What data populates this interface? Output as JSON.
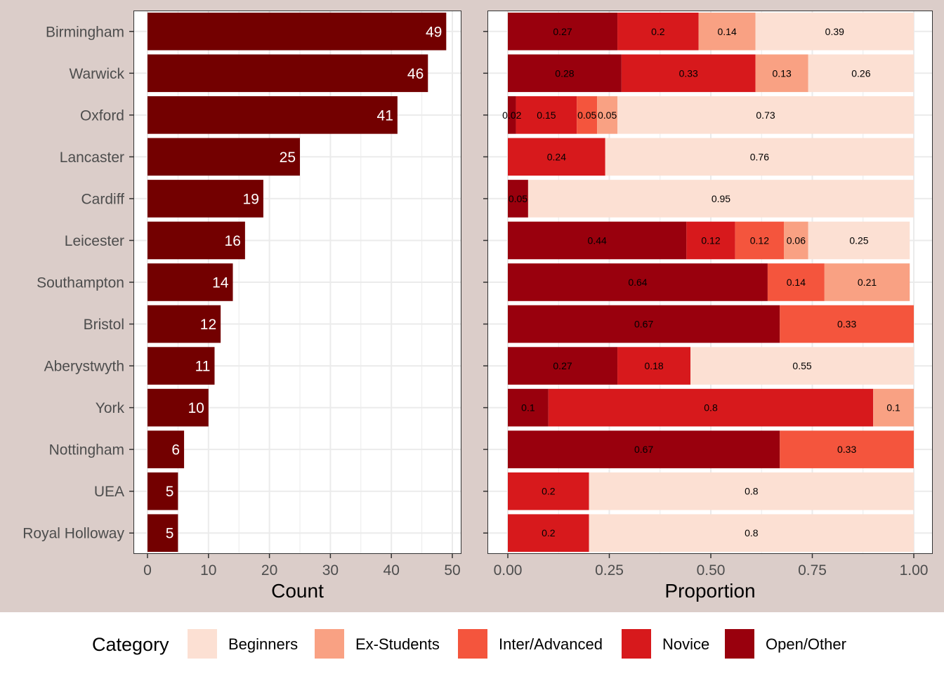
{
  "chart_data": [
    {
      "type": "bar",
      "orientation": "horizontal",
      "xlabel": "Count",
      "xlim": [
        0,
        50
      ],
      "xticks": [
        "0",
        "10",
        "20",
        "30",
        "40",
        "50"
      ],
      "grid": true,
      "categories": [
        "Birmingham",
        "Warwick",
        "Oxford",
        "Lancaster",
        "Cardiff",
        "Leicester",
        "Southampton",
        "Bristol",
        "Aberystwyth",
        "York",
        "Nottingham",
        "UEA",
        "Royal Holloway"
      ],
      "values": [
        49,
        46,
        41,
        25,
        19,
        16,
        14,
        12,
        11,
        10,
        6,
        5,
        5
      ],
      "value_labels": [
        "49",
        "46",
        "41",
        "25",
        "19",
        "16",
        "14",
        "12",
        "11",
        "10",
        "6",
        "5",
        "5"
      ],
      "bar_color": "#730000"
    },
    {
      "type": "bar",
      "orientation": "horizontal",
      "stacked": true,
      "xlabel": "Proportion",
      "xlim": [
        0,
        1
      ],
      "xticks": [
        "0.00",
        "0.25",
        "0.50",
        "0.75",
        "1.00"
      ],
      "grid": true,
      "categories": [
        "Birmingham",
        "Warwick",
        "Oxford",
        "Lancaster",
        "Cardiff",
        "Leicester",
        "Southampton",
        "Bristol",
        "Aberystwyth",
        "York",
        "Nottingham",
        "UEA",
        "Royal Holloway"
      ],
      "series": [
        {
          "name": "Open/Other",
          "color": "#99000d",
          "values": [
            0.27,
            0.28,
            0.02,
            0,
            0.05,
            0.44,
            0.64,
            0.67,
            0.27,
            0.1,
            0.67,
            0,
            0
          ],
          "labels": [
            "0.27",
            "0.28",
            "0.02",
            "",
            "0.05",
            "0.44",
            "0.64",
            "0.67",
            "0.27",
            "0.1",
            "0.67",
            "",
            ""
          ]
        },
        {
          "name": "Novice",
          "color": "#d7191c",
          "values": [
            0.2,
            0.33,
            0.15,
            0.24,
            0,
            0.12,
            0,
            0,
            0.18,
            0.8,
            0,
            0.2,
            0.2
          ],
          "labels": [
            "0.2",
            "0.33",
            "0.15",
            "0.24",
            "",
            "0.12",
            "",
            "",
            "0.18",
            "0.8",
            "",
            "0.2",
            "0.2"
          ]
        },
        {
          "name": "Inter/Advanced",
          "color": "#f4553d",
          "values": [
            0,
            0,
            0.05,
            0,
            0,
            0.12,
            0.14,
            0.33,
            0,
            0,
            0.33,
            0,
            0
          ],
          "labels": [
            "",
            "",
            "0.05",
            "",
            "",
            "0.12",
            "0.14",
            "0.33",
            "",
            "",
            "0.33",
            "",
            ""
          ]
        },
        {
          "name": "Ex-Students",
          "color": "#f9a183",
          "values": [
            0.14,
            0.13,
            0.05,
            0,
            0,
            0.06,
            0.21,
            0,
            0,
            0.1,
            0,
            0,
            0
          ],
          "labels": [
            "0.14",
            "0.13",
            "0.05",
            "",
            "",
            "0.06",
            "0.21",
            "",
            "",
            "0.1",
            "",
            "",
            ""
          ]
        },
        {
          "name": "Beginners",
          "color": "#fce0d3",
          "values": [
            0.39,
            0.26,
            0.73,
            0.76,
            0.95,
            0.25,
            0,
            0,
            0.55,
            0,
            0,
            0.8,
            0.8
          ],
          "labels": [
            "0.39",
            "0.26",
            "0.73",
            "0.76",
            "0.95",
            "0.25",
            "",
            "",
            "0.55",
            "",
            "",
            "0.8",
            "0.8"
          ]
        }
      ]
    }
  ],
  "legend": {
    "title": "Category",
    "items": [
      {
        "label": "Beginners",
        "color": "#fce0d3"
      },
      {
        "label": "Ex-Students",
        "color": "#f9a183"
      },
      {
        "label": "Inter/Advanced",
        "color": "#f4553d"
      },
      {
        "label": "Novice",
        "color": "#d7191c"
      },
      {
        "label": "Open/Other",
        "color": "#99000d"
      }
    ]
  }
}
